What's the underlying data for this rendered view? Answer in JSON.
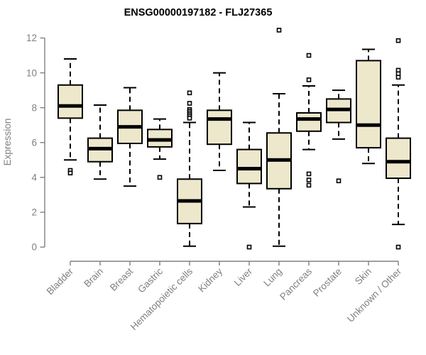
{
  "page": {
    "title": "ENSG00000197182 - FLJ27365"
  },
  "chart_data": {
    "type": "boxplot",
    "title": "ENSG00000197182 - FLJ27365",
    "xlabel": "",
    "ylabel": "Expression",
    "ylim": [
      0,
      12
    ],
    "yticks": [
      0,
      2,
      4,
      6,
      8,
      10,
      12
    ],
    "grid": false,
    "legend": "none",
    "x_label_rotation_deg": 45,
    "style": {
      "box_fill": "#EDE8CC",
      "box_stroke": "#000000",
      "median_color": "#000000",
      "whisker_style": "dashed",
      "outlier_marker": "open-square",
      "axis_color": "#808080",
      "tick_label_color": "#808080",
      "title_color": "#000000",
      "background": "#FFFFFF"
    },
    "categories": [
      "Bladder",
      "Brain",
      "Breast",
      "Gastric",
      "Hematopoietic cells",
      "Kidney",
      "Liver",
      "Lung",
      "Pancreas",
      "Prostate",
      "Skin",
      "Unknown / Other"
    ],
    "boxes": [
      {
        "category": "Bladder",
        "whisker_low": 5.0,
        "q1": 7.4,
        "median": 8.1,
        "q3": 9.3,
        "whisker_high": 10.8,
        "outliers": [
          4.4,
          4.25
        ]
      },
      {
        "category": "Brain",
        "whisker_low": 3.9,
        "q1": 4.9,
        "median": 5.65,
        "q3": 6.25,
        "whisker_high": 8.15,
        "outliers": []
      },
      {
        "category": "Breast",
        "whisker_low": 3.5,
        "q1": 5.95,
        "median": 6.9,
        "q3": 7.85,
        "whisker_high": 9.15,
        "outliers": []
      },
      {
        "category": "Gastric",
        "whisker_low": 5.05,
        "q1": 5.75,
        "median": 6.15,
        "q3": 6.75,
        "whisker_high": 7.35,
        "outliers": [
          4.0
        ]
      },
      {
        "category": "Hematopoietic cells",
        "whisker_low": 0.05,
        "q1": 1.35,
        "median": 2.65,
        "q3": 3.9,
        "whisker_high": 7.15,
        "outliers": [
          8.85,
          8.25,
          7.9,
          7.8,
          7.7,
          7.6,
          7.5,
          7.4
        ]
      },
      {
        "category": "Kidney",
        "whisker_low": 4.4,
        "q1": 5.9,
        "median": 7.35,
        "q3": 7.85,
        "whisker_high": 10.0,
        "outliers": []
      },
      {
        "category": "Liver",
        "whisker_low": 2.3,
        "q1": 3.65,
        "median": 4.5,
        "q3": 5.6,
        "whisker_high": 7.15,
        "outliers": [
          0.0
        ]
      },
      {
        "category": "Lung",
        "whisker_low": 0.05,
        "q1": 3.35,
        "median": 5.0,
        "q3": 6.55,
        "whisker_high": 8.8,
        "outliers": [
          12.45
        ]
      },
      {
        "category": "Pancreas",
        "whisker_low": 5.6,
        "q1": 6.65,
        "median": 7.35,
        "q3": 7.7,
        "whisker_high": 9.25,
        "outliers": [
          11.0,
          9.6,
          4.2,
          3.85,
          3.55
        ]
      },
      {
        "category": "Prostate",
        "whisker_low": 6.2,
        "q1": 7.15,
        "median": 7.9,
        "q3": 8.5,
        "whisker_high": 9.0,
        "outliers": [
          3.8
        ]
      },
      {
        "category": "Skin",
        "whisker_low": 4.8,
        "q1": 5.7,
        "median": 7.0,
        "q3": 10.7,
        "whisker_high": 11.35,
        "outliers": []
      },
      {
        "category": "Unknown / Other",
        "whisker_low": 1.3,
        "q1": 3.95,
        "median": 4.9,
        "q3": 6.25,
        "whisker_high": 9.3,
        "outliers": [
          11.85,
          10.15,
          9.95,
          9.75,
          0.0
        ]
      }
    ]
  }
}
